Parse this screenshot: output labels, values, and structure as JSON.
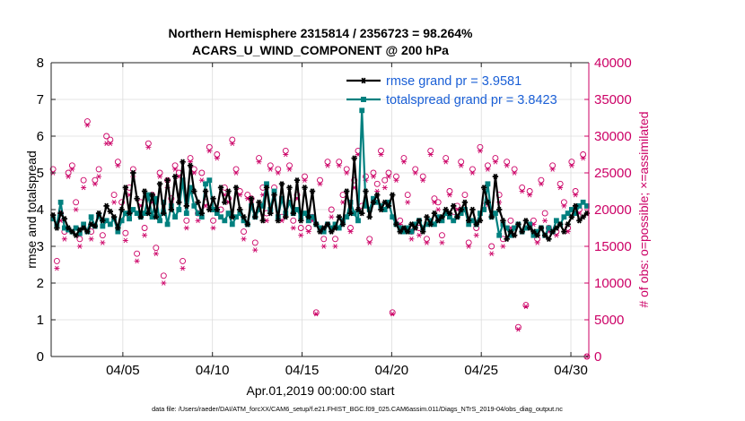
{
  "chart_data": {
    "type": "line",
    "title_line1": "Northern Hemisphere 2315814 / 2356723 = 98.264%",
    "title_line2": "ACARS_U_WIND_COMPONENT @ 200 hPa",
    "xlabel": "Apr.01,2019 00:00:00 start",
    "ylabel_left": "rmse and totalspread",
    "ylabel_right": "# of obs: o=possible; ×=assimilated",
    "footer": "data file: /Users/raeder/DAI/ATM_forcXX/CAM6_setup/f.e21.FHIST_BGC.f09_025.CAM6assim.011/Diags_NTrS_2019-04/obs_diag_output.nc",
    "xlim": [
      1.0,
      31.0
    ],
    "ylim_left": [
      0,
      8
    ],
    "ylim_right": [
      0,
      40000
    ],
    "x_ticks": [
      {
        "x": 5,
        "label": "04/05"
      },
      {
        "x": 10,
        "label": "04/10"
      },
      {
        "x": 15,
        "label": "04/15"
      },
      {
        "x": 20,
        "label": "04/20"
      },
      {
        "x": 25,
        "label": "04/25"
      },
      {
        "x": 30,
        "label": "04/30"
      }
    ],
    "y_left_ticks": [
      "0",
      "1",
      "2",
      "3",
      "4",
      "5",
      "6",
      "7",
      "8"
    ],
    "y_right_ticks": [
      "0",
      "5000",
      "10000",
      "15000",
      "20000",
      "25000",
      "30000",
      "35000",
      "40000"
    ],
    "colors": {
      "rmse": "#000000",
      "spread": "#00807f",
      "obs": "#cc0066"
    },
    "series": [
      {
        "name": "rmse grand pr = 3.9581",
        "axis": "left",
        "values": [
          3.85,
          3.5,
          3.9,
          3.75,
          3.5,
          3.4,
          3.3,
          3.45,
          3.5,
          3.4,
          3.6,
          3.55,
          3.9,
          3.7,
          4.1,
          3.95,
          3.8,
          3.5,
          4.0,
          4.6,
          3.9,
          5.0,
          4.3,
          3.8,
          4.5,
          3.9,
          4.4,
          3.8,
          4.7,
          3.9,
          4.8,
          4.0,
          4.9,
          4.2,
          5.3,
          4.1,
          5.2,
          4.5,
          4.2,
          3.9,
          4.5,
          4.0,
          4.3,
          4.0,
          4.6,
          4.2,
          4.5,
          3.8,
          4.6,
          4.0,
          3.8,
          3.6,
          4.3,
          3.8,
          4.2,
          3.7,
          4.6,
          3.9,
          4.4,
          3.7,
          4.7,
          3.8,
          4.6,
          3.9,
          4.8,
          3.7,
          4.6,
          3.8,
          4.5,
          3.6,
          3.4,
          3.5,
          3.6,
          3.4,
          3.5,
          3.8,
          3.6,
          4.5,
          3.9,
          5.4,
          4.0,
          3.9,
          4.5,
          3.8,
          4.2,
          4.4,
          4.0,
          4.2,
          4.1,
          4.4,
          3.6,
          3.4,
          3.5,
          3.4,
          3.6,
          3.5,
          3.7,
          3.4,
          3.8,
          3.6,
          3.9,
          3.7,
          3.8,
          4.0,
          3.9,
          4.1,
          3.8,
          4.0,
          4.2,
          3.7,
          4.0,
          3.6,
          3.7,
          4.6,
          4.2,
          3.8,
          4.9,
          4.0,
          3.7,
          3.2,
          3.4,
          3.3,
          3.6,
          3.4,
          3.7,
          3.5,
          3.4,
          3.3,
          3.5,
          3.3,
          3.2,
          3.4,
          3.5,
          3.6,
          3.4,
          3.6,
          3.8,
          4.1,
          3.7,
          3.8,
          3.9
        ]
      },
      {
        "name": "totalspread grand pr = 3.8423",
        "axis": "left",
        "values": [
          3.75,
          3.6,
          4.2,
          3.5,
          3.45,
          3.4,
          3.5,
          3.35,
          3.6,
          3.4,
          3.8,
          3.55,
          3.85,
          3.55,
          3.7,
          3.6,
          3.75,
          3.4,
          3.7,
          3.9,
          3.75,
          4.0,
          3.9,
          3.8,
          3.9,
          4.4,
          3.8,
          4.3,
          3.7,
          4.2,
          3.6,
          4.1,
          3.8,
          4.0,
          4.8,
          3.9,
          4.6,
          4.1,
          3.9,
          3.8,
          4.7,
          4.8,
          4.0,
          3.9,
          3.8,
          3.7,
          3.9,
          3.6,
          3.8,
          3.9,
          3.7,
          3.6,
          4.1,
          3.8,
          4.0,
          4.1,
          4.7,
          4.0,
          4.5,
          3.8,
          4.3,
          3.9,
          4.2,
          3.9,
          4.0,
          3.8,
          3.9,
          3.7,
          3.8,
          3.6,
          3.5,
          3.4,
          3.6,
          3.5,
          3.6,
          3.5,
          3.7,
          3.8,
          4.2,
          3.9,
          3.7,
          6.7,
          4.1,
          4.0,
          4.3,
          4.2,
          4.1,
          4.0,
          4.2,
          3.8,
          3.6,
          3.5,
          3.4,
          3.5,
          3.4,
          3.6,
          3.7,
          3.5,
          3.6,
          3.7,
          3.6,
          3.8,
          3.7,
          3.9,
          3.8,
          3.7,
          3.8,
          3.9,
          4.0,
          3.6,
          3.7,
          3.6,
          3.9,
          4.0,
          4.7,
          3.8,
          3.9,
          3.3,
          3.6,
          3.5,
          3.3,
          3.5,
          3.6,
          3.4,
          3.5,
          3.6,
          3.3,
          3.4,
          3.5,
          3.3,
          3.5,
          3.4,
          3.7,
          3.6,
          3.8,
          3.9,
          4.0,
          3.9,
          4.1,
          4.2,
          4.1
        ]
      },
      {
        "name": "possible observations",
        "axis": "right",
        "marker": "circle",
        "values": [
          25500,
          13000,
          19500,
          17000,
          25000,
          26000,
          21000,
          16000,
          24000,
          32000,
          17000,
          24000,
          25500,
          16500,
          30000,
          29500,
          22000,
          26500,
          21000,
          16800,
          23000,
          25500,
          14000,
          21000,
          17500,
          29000,
          22000,
          14800,
          25000,
          11000,
          24000,
          21500,
          26000,
          25000,
          13000,
          18500,
          27000,
          25500,
          19500,
          25000,
          21000,
          28500,
          18500,
          27500,
          20000,
          23000,
          21500,
          29500,
          25500,
          22500,
          17000,
          22000,
          21500,
          15500,
          27000,
          23000,
          19500,
          26000,
          23000,
          25500,
          19000,
          28000,
          26000,
          18500,
          22000,
          17500,
          24500,
          17500,
          19000,
          6000,
          24000,
          16000,
          26500,
          20000,
          16000,
          26500,
          22000,
          25500,
          17500,
          24000,
          28000,
          20500,
          24500,
          16000,
          25000,
          23500,
          28000,
          24000,
          25000,
          6000,
          24500,
          18500,
          27000,
          22000,
          17000,
          25500,
          17500,
          24500,
          16000,
          28000,
          21500,
          21000,
          16500,
          27000,
          22500,
          19000,
          20500,
          26500,
          22000,
          15500,
          25500,
          17500,
          28500,
          20500,
          26000,
          15000,
          27000,
          22000,
          16000,
          26500,
          18500,
          25500,
          4000,
          23000,
          7000,
          22500,
          18500,
          16000,
          24000,
          19500,
          17500,
          26000,
          17000,
          23500,
          21000,
          17500,
          26500,
          22500,
          20000,
          27500,
          0
        ]
      },
      {
        "name": "assimilated observations",
        "axis": "right",
        "marker": "asterisk",
        "values": [
          25000,
          12000,
          18500,
          16000,
          24500,
          25500,
          20000,
          15000,
          23000,
          31500,
          16000,
          23500,
          24500,
          15500,
          29000,
          29000,
          21000,
          26000,
          20000,
          15800,
          22000,
          24500,
          13000,
          20500,
          16500,
          28500,
          21000,
          14000,
          24500,
          10000,
          23000,
          21000,
          25500,
          24500,
          12000,
          17500,
          26500,
          25000,
          18500,
          24000,
          20500,
          28000,
          17500,
          27000,
          19000,
          22000,
          21000,
          29000,
          25000,
          22000,
          16000,
          21500,
          21000,
          14500,
          26500,
          22000,
          18500,
          25500,
          22000,
          25000,
          18500,
          27500,
          25500,
          17500,
          21500,
          16500,
          24000,
          17000,
          18500,
          5800,
          23500,
          15000,
          26000,
          19000,
          15000,
          26000,
          21000,
          25000,
          17000,
          23000,
          27500,
          19500,
          24000,
          15500,
          24500,
          22500,
          27500,
          23000,
          24500,
          5800,
          24000,
          18000,
          26500,
          21000,
          16000,
          25000,
          16500,
          24000,
          15500,
          27500,
          21000,
          20000,
          15500,
          26500,
          22000,
          18500,
          20000,
          26000,
          21000,
          15000,
          25000,
          16500,
          28000,
          20000,
          25500,
          14000,
          26500,
          21000,
          15000,
          26000,
          17500,
          25000,
          3700,
          22500,
          6800,
          22000,
          18000,
          15500,
          23500,
          18500,
          17000,
          25500,
          16500,
          23000,
          20500,
          17000,
          26000,
          22000,
          19500,
          27000,
          0
        ]
      }
    ]
  }
}
